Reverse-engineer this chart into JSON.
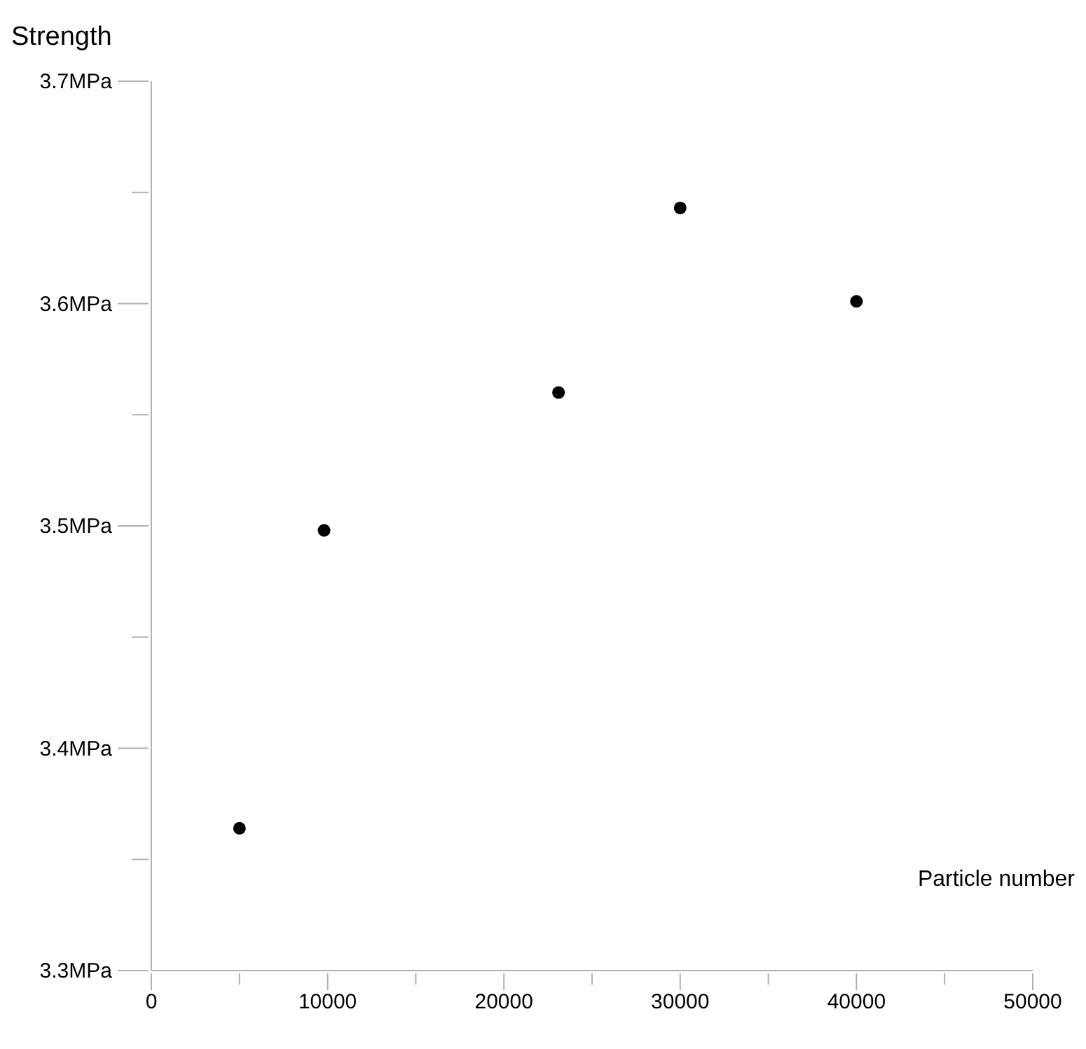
{
  "chart_data": {
    "type": "scatter",
    "ylabel": "Strength",
    "xlabel": "Particle number",
    "x": [
      5000,
      9800,
      23100,
      30000,
      40000
    ],
    "series": [
      {
        "color": "#000000",
        "values": [
          3.364,
          3.498,
          3.56,
          3.643,
          3.601
        ]
      }
    ],
    "xlim": [
      0,
      50000
    ],
    "ylim": [
      3.3,
      3.7
    ],
    "xticks": [
      0,
      {
        "value": 5000,
        "label": null
      },
      10000,
      {
        "value": 15000,
        "label": null
      },
      20000,
      {
        "value": 25000,
        "label": null
      },
      30000,
      {
        "value": 35000,
        "label": null
      },
      40000,
      {
        "value": 45000,
        "label": null
      },
      50000
    ],
    "yticks": [
      {
        "value": 3.3,
        "label": "3.3MPa"
      },
      {
        "value": 3.35,
        "label": null
      },
      {
        "value": 3.4,
        "label": "3.4MPa"
      },
      {
        "value": 3.45,
        "label": null
      },
      {
        "value": 3.5,
        "label": "3.5MPa"
      },
      {
        "value": 3.55,
        "label": null
      },
      {
        "value": 3.6,
        "label": "3.6MPa"
      },
      {
        "value": 3.65,
        "label": null
      },
      {
        "value": 3.7,
        "label": "3.7MPa"
      }
    ],
    "grid": false,
    "legend": false,
    "marker": "circle"
  }
}
